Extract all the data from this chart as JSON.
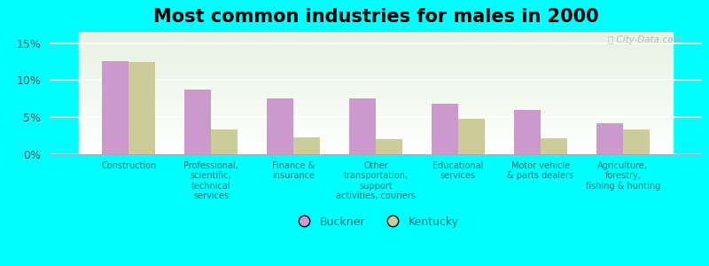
{
  "title": "Most common industries for males in 2000",
  "categories": [
    "Construction",
    "Professional,\nscientific,\ntechnical\nservices",
    "Finance &\ninsurance",
    "Other\ntransportation,\nsupport\nactivities, couriers",
    "Educational\nservices",
    "Motor vehicle\n& parts dealers",
    "Agriculture,\nforestry,\nfishing & hunting"
  ],
  "buckner_values": [
    12.5,
    8.7,
    7.5,
    7.5,
    6.8,
    6.0,
    4.2
  ],
  "kentucky_values": [
    12.4,
    3.4,
    2.3,
    2.0,
    4.8,
    2.1,
    3.3
  ],
  "buckner_color": "#cc99cc",
  "kentucky_color": "#cccc99",
  "background_color": "#00ffff",
  "yticks": [
    0,
    5,
    10,
    15
  ],
  "ylim": [
    0,
    16.5
  ],
  "legend_labels": [
    "Buckner",
    "Kentucky"
  ],
  "title_fontsize": 15,
  "bar_width": 0.32
}
